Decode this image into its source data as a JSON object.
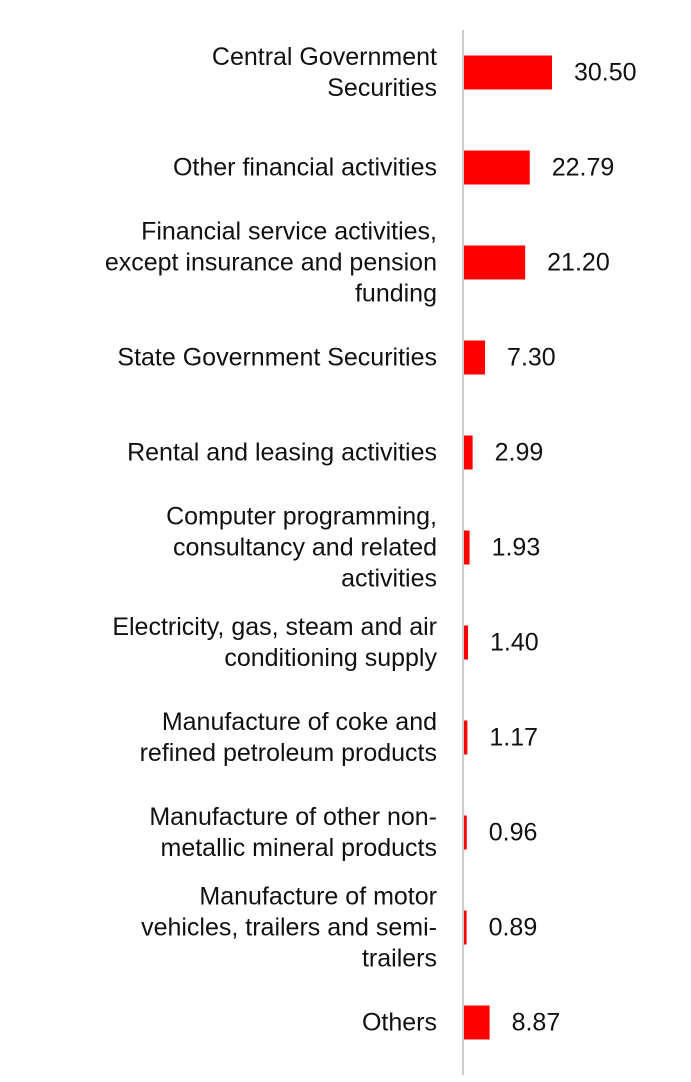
{
  "chart_data": {
    "type": "bar",
    "orientation": "horizontal",
    "title": "",
    "xlabel": "",
    "ylabel": "",
    "grid": false,
    "legend": "none",
    "bar_color": "#ff0000",
    "axis_color": "#cccccc",
    "xlim": [
      0,
      30.5
    ],
    "categories": [
      [
        "Central Government",
        "Securities"
      ],
      [
        "Other financial activities"
      ],
      [
        "Financial service activities,",
        "except insurance and pension",
        "funding"
      ],
      [
        "State Government Securities"
      ],
      [
        "Rental and leasing activities"
      ],
      [
        "Computer programming,",
        "consultancy and related",
        "activities"
      ],
      [
        "Electricity, gas, steam and air",
        "conditioning supply"
      ],
      [
        "Manufacture of coke and",
        "refined petroleum products"
      ],
      [
        "Manufacture of other non-",
        "metallic mineral products"
      ],
      [
        "Manufacture of motor",
        "vehicles, trailers and semi-",
        "trailers"
      ],
      [
        "Others"
      ]
    ],
    "values": [
      30.5,
      22.79,
      21.2,
      7.3,
      2.99,
      1.93,
      1.4,
      1.17,
      0.96,
      0.89,
      8.87
    ],
    "value_labels": [
      "30.50",
      "22.79",
      "21.20",
      "7.30",
      "2.99",
      "1.93",
      "1.40",
      "1.17",
      "0.96",
      "0.89",
      "8.87"
    ]
  }
}
